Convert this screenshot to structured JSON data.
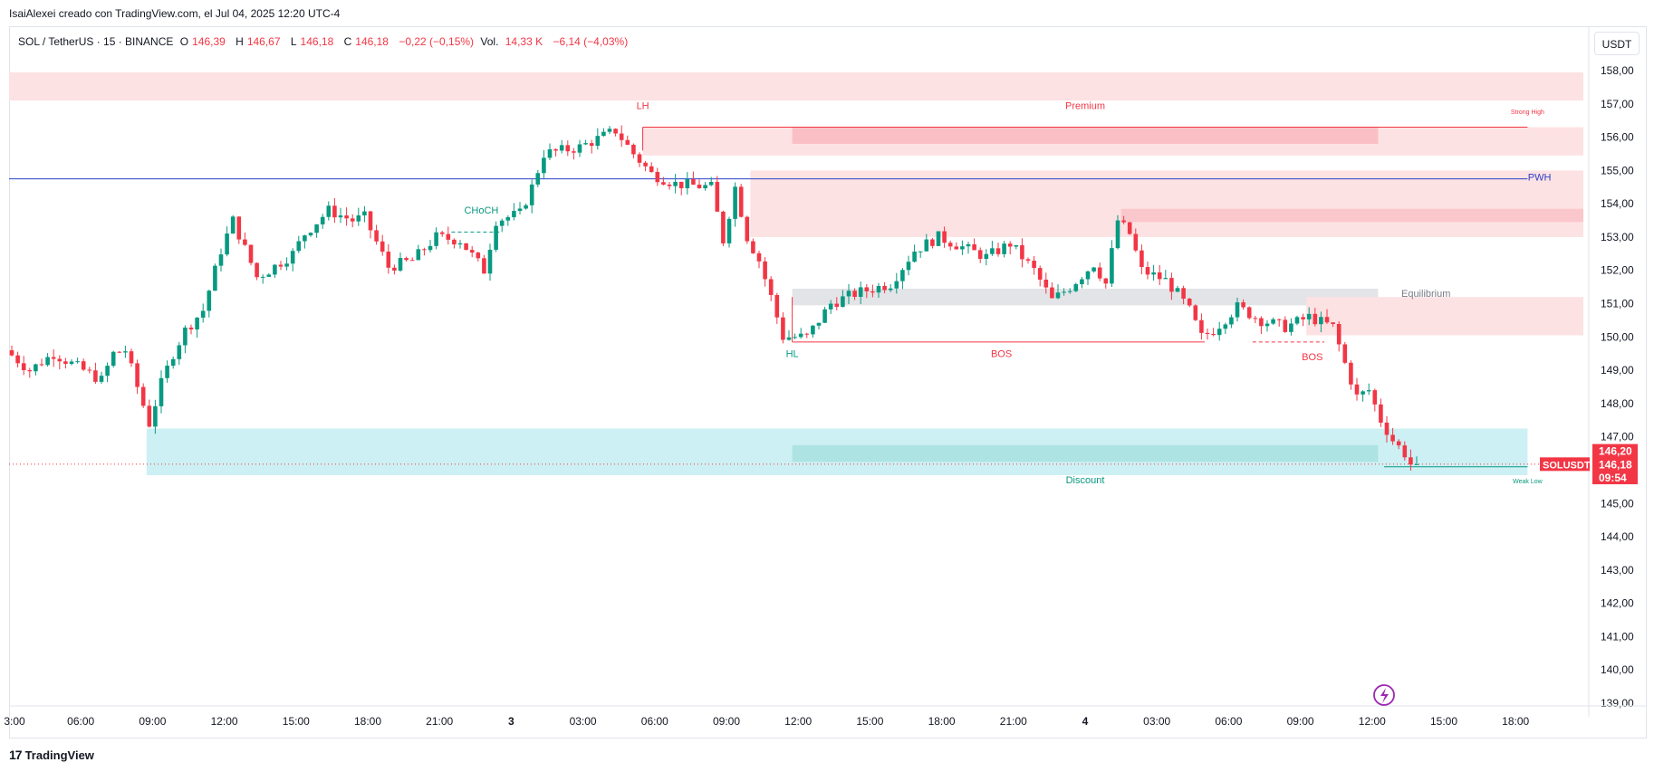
{
  "caption": "IsaiAlexei creado con TradingView.com, el Jul 04, 2025 12:20 UTC-4",
  "legend": {
    "symbol": "SOL / TetherUS · 15 · BINANCE",
    "open_label": "O",
    "open": "146,39",
    "high_label": "H",
    "high": "146,67",
    "low_label": "L",
    "low": "146,18",
    "close_label": "C",
    "close": "146,18",
    "change": "−0,22 (−0,15%)",
    "vol_label": "Vol.",
    "vol": "14,33 K",
    "vol_change": "−6,14 (−4,03%)"
  },
  "currency": "USDT",
  "footer": {
    "brand": "TradingView",
    "logo_glyph": "17"
  },
  "colors": {
    "up": "#089981",
    "down": "#f23645",
    "premium_zone": "#fde2e3",
    "discount_zone": "#cdf0f4",
    "pwh_line": "#2a3fc7"
  },
  "chart_data": {
    "type": "candlestick",
    "symbol": "SOLUSDT",
    "interval": "15",
    "ylim": [
      138.6,
      158.6
    ],
    "y_ticks": [
      "158,00",
      "157,00",
      "156,00",
      "155,00",
      "154,00",
      "153,00",
      "152,00",
      "151,00",
      "150,00",
      "149,00",
      "148,00",
      "147,00",
      "145,00",
      "144,00",
      "143,00",
      "142,00",
      "141,00",
      "140,00",
      "139,00"
    ],
    "y_tick_values": [
      158,
      157,
      156,
      155,
      154,
      153,
      152,
      151,
      150,
      149,
      148,
      147,
      145,
      144,
      143,
      142,
      141,
      140,
      139
    ],
    "x_ticks": [
      {
        "label": "3:00",
        "t": 0
      },
      {
        "label": "06:00",
        "t": 12
      },
      {
        "label": "09:00",
        "t": 24
      },
      {
        "label": "12:00",
        "t": 36
      },
      {
        "label": "15:00",
        "t": 48
      },
      {
        "label": "18:00",
        "t": 60
      },
      {
        "label": "21:00",
        "t": 72
      },
      {
        "label": "3",
        "t": 84
      },
      {
        "label": "03:00",
        "t": 96
      },
      {
        "label": "06:00",
        "t": 108
      },
      {
        "label": "09:00",
        "t": 120
      },
      {
        "label": "12:00",
        "t": 132
      },
      {
        "label": "15:00",
        "t": 144
      },
      {
        "label": "18:00",
        "t": 156
      },
      {
        "label": "21:00",
        "t": 168
      },
      {
        "label": "4",
        "t": 180
      },
      {
        "label": "03:00",
        "t": 192
      },
      {
        "label": "06:00",
        "t": 204
      },
      {
        "label": "09:00",
        "t": 216
      },
      {
        "label": "12:00",
        "t": 228
      },
      {
        "label": "15:00",
        "t": 240
      },
      {
        "label": "18:00",
        "t": 252
      }
    ],
    "x_range": [
      0,
      264
    ],
    "anchors": [
      [
        0,
        149.6
      ],
      [
        4,
        149.0
      ],
      [
        8,
        149.5
      ],
      [
        12,
        149.1
      ],
      [
        16,
        148.7
      ],
      [
        18,
        149.5
      ],
      [
        20,
        149.6
      ],
      [
        22,
        148.5
      ],
      [
        24,
        147.4
      ],
      [
        26,
        148.6
      ],
      [
        28,
        149.5
      ],
      [
        30,
        150.2
      ],
      [
        33,
        150.8
      ],
      [
        36,
        152.6
      ],
      [
        38,
        153.5
      ],
      [
        42,
        151.8
      ],
      [
        44,
        152.0
      ],
      [
        48,
        152.5
      ],
      [
        50,
        153.1
      ],
      [
        54,
        153.8
      ],
      [
        58,
        153.5
      ],
      [
        60,
        153.6
      ],
      [
        64,
        152.1
      ],
      [
        68,
        152.3
      ],
      [
        72,
        153.0
      ],
      [
        76,
        152.9
      ],
      [
        80,
        152.0
      ],
      [
        82,
        153.5
      ],
      [
        86,
        153.7
      ],
      [
        88,
        154.5
      ],
      [
        90,
        155.5
      ],
      [
        96,
        155.7
      ],
      [
        102,
        156.2
      ],
      [
        105,
        155.5
      ],
      [
        108,
        154.9
      ],
      [
        112,
        154.6
      ],
      [
        118,
        154.5
      ],
      [
        120,
        152.9
      ],
      [
        122,
        154.5
      ],
      [
        124,
        153.0
      ],
      [
        126,
        152.3
      ],
      [
        128,
        151.2
      ],
      [
        130,
        150.0
      ],
      [
        134,
        150.0
      ],
      [
        138,
        151.0
      ],
      [
        142,
        151.3
      ],
      [
        148,
        151.6
      ],
      [
        152,
        152.6
      ],
      [
        156,
        153.0
      ],
      [
        160,
        152.7
      ],
      [
        164,
        152.4
      ],
      [
        168,
        152.8
      ],
      [
        172,
        152.0
      ],
      [
        175,
        151.1
      ],
      [
        178,
        151.5
      ],
      [
        182,
        152.2
      ],
      [
        184,
        151.6
      ],
      [
        186,
        153.5
      ],
      [
        188,
        153.1
      ],
      [
        190,
        152.0
      ],
      [
        194,
        151.7
      ],
      [
        196,
        151.3
      ],
      [
        198,
        150.8
      ],
      [
        200,
        150.0
      ],
      [
        202,
        150.2
      ],
      [
        206,
        150.9
      ],
      [
        210,
        150.5
      ],
      [
        214,
        150.3
      ],
      [
        218,
        150.6
      ],
      [
        222,
        150.3
      ],
      [
        224,
        149.2
      ],
      [
        226,
        148.2
      ],
      [
        228,
        148.4
      ],
      [
        230,
        147.5
      ],
      [
        232,
        146.9
      ],
      [
        234,
        146.5
      ],
      [
        235,
        146.18
      ]
    ],
    "markers": [
      {
        "label": "LH",
        "t": 106,
        "price": 156.85,
        "color": "#f23645"
      },
      {
        "label": "Premium",
        "t": 180,
        "price": 156.85,
        "color": "#f23645"
      },
      {
        "label": "Strong High",
        "t": 254,
        "price": 156.7,
        "color": "#f23645",
        "small": true
      },
      {
        "label": "CHoCH",
        "t": 79,
        "price": 153.7,
        "color": "#089981"
      },
      {
        "label": "PWH",
        "t": 256,
        "price": 154.7,
        "color": "#2a3fc7"
      },
      {
        "label": "Equilibrium",
        "t": 237,
        "price": 151.2,
        "color": "#787b86"
      },
      {
        "label": "HL",
        "t": 131,
        "price": 149.4,
        "color": "#089981"
      },
      {
        "label": "BOS",
        "t": 166,
        "price": 149.4,
        "color": "#f23645"
      },
      {
        "label": "BOS",
        "t": 218,
        "price": 149.3,
        "color": "#f23645"
      },
      {
        "label": "Discount",
        "t": 180,
        "price": 145.6,
        "color": "#089981"
      },
      {
        "label": "Weak Low",
        "t": 254,
        "price": 145.6,
        "color": "#089981",
        "small": true
      }
    ],
    "price_tags": [
      {
        "label": "146,20",
        "price": 146.58,
        "color": "#f23645"
      },
      {
        "label": "146,18",
        "price": 146.18,
        "color": "#f23645"
      },
      {
        "label": "09:54",
        "price": 145.78,
        "color": "#f23645"
      }
    ],
    "symbol_tag": {
      "label": "SOLUSDT",
      "price": 146.18,
      "color": "#f23645"
    },
    "pwh_price": 154.75,
    "last_price": 146.18,
    "zones": [
      {
        "t0": 0,
        "t1": 264,
        "p0": 157.1,
        "p1": 157.95,
        "color": "#fde2e3",
        "opacity": 1
      },
      {
        "t0": 106,
        "t1": 264,
        "p0": 155.45,
        "p1": 156.3,
        "color": "#fde2e3",
        "opacity": 1
      },
      {
        "t0": 131,
        "t1": 229,
        "p0": 155.8,
        "p1": 156.3,
        "color": "#f7a3ab",
        "opacity": 0.55
      },
      {
        "t0": 124,
        "t1": 264,
        "p0": 153.0,
        "p1": 155.0,
        "color": "#fde2e3",
        "opacity": 1
      },
      {
        "t0": 186,
        "t1": 264,
        "p0": 153.45,
        "p1": 153.85,
        "color": "#f6b6bc",
        "opacity": 0.6
      },
      {
        "t0": 131,
        "t1": 229,
        "p0": 150.95,
        "p1": 151.45,
        "color": "#dcdde2",
        "opacity": 0.8
      },
      {
        "t0": 217,
        "t1": 264,
        "p0": 150.05,
        "p1": 151.2,
        "color": "#fde2e3",
        "opacity": 1
      },
      {
        "t0": 23,
        "t1": 254,
        "p0": 145.85,
        "p1": 147.25,
        "color": "#cdf0f4",
        "opacity": 1
      },
      {
        "t0": 131,
        "t1": 229,
        "p0": 146.25,
        "p1": 146.75,
        "color": "#9fdedb",
        "opacity": 0.7
      }
    ],
    "lines": [
      {
        "t0": 106,
        "t1": 254,
        "p": 156.3,
        "color": "#f23645",
        "dash": false
      },
      {
        "t0": 106,
        "t1": 106,
        "p0": 156.3,
        "p1": 155.6,
        "color": "#f23645",
        "dash": false
      },
      {
        "t0": 131,
        "t1": 200,
        "p": 149.85,
        "color": "#f23645",
        "dash": false
      },
      {
        "t0": 131,
        "t1": 131,
        "p0": 149.85,
        "p1": 151.2,
        "color": "#f23645",
        "dash": false
      },
      {
        "t0": 208,
        "t1": 220,
        "p": 149.85,
        "color": "#f23645",
        "dash": true
      },
      {
        "t0": 74,
        "t1": 82,
        "p": 153.15,
        "color": "#089981",
        "dash": true
      },
      {
        "t0": 230,
        "t1": 254,
        "p": 146.1,
        "color": "#089981",
        "dash": false
      }
    ]
  }
}
